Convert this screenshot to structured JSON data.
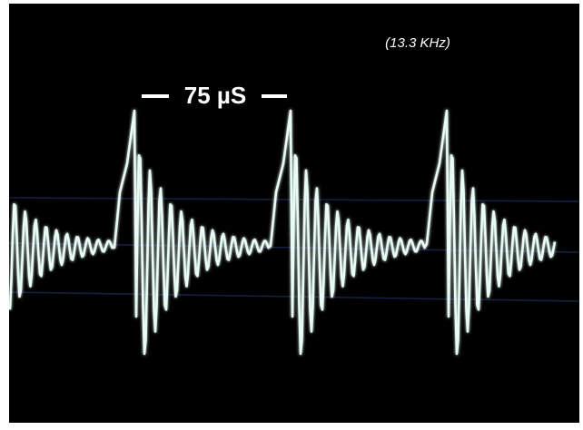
{
  "annotations": {
    "period": "75 µS",
    "frequency": "(13.3 KHz)"
  }
}
